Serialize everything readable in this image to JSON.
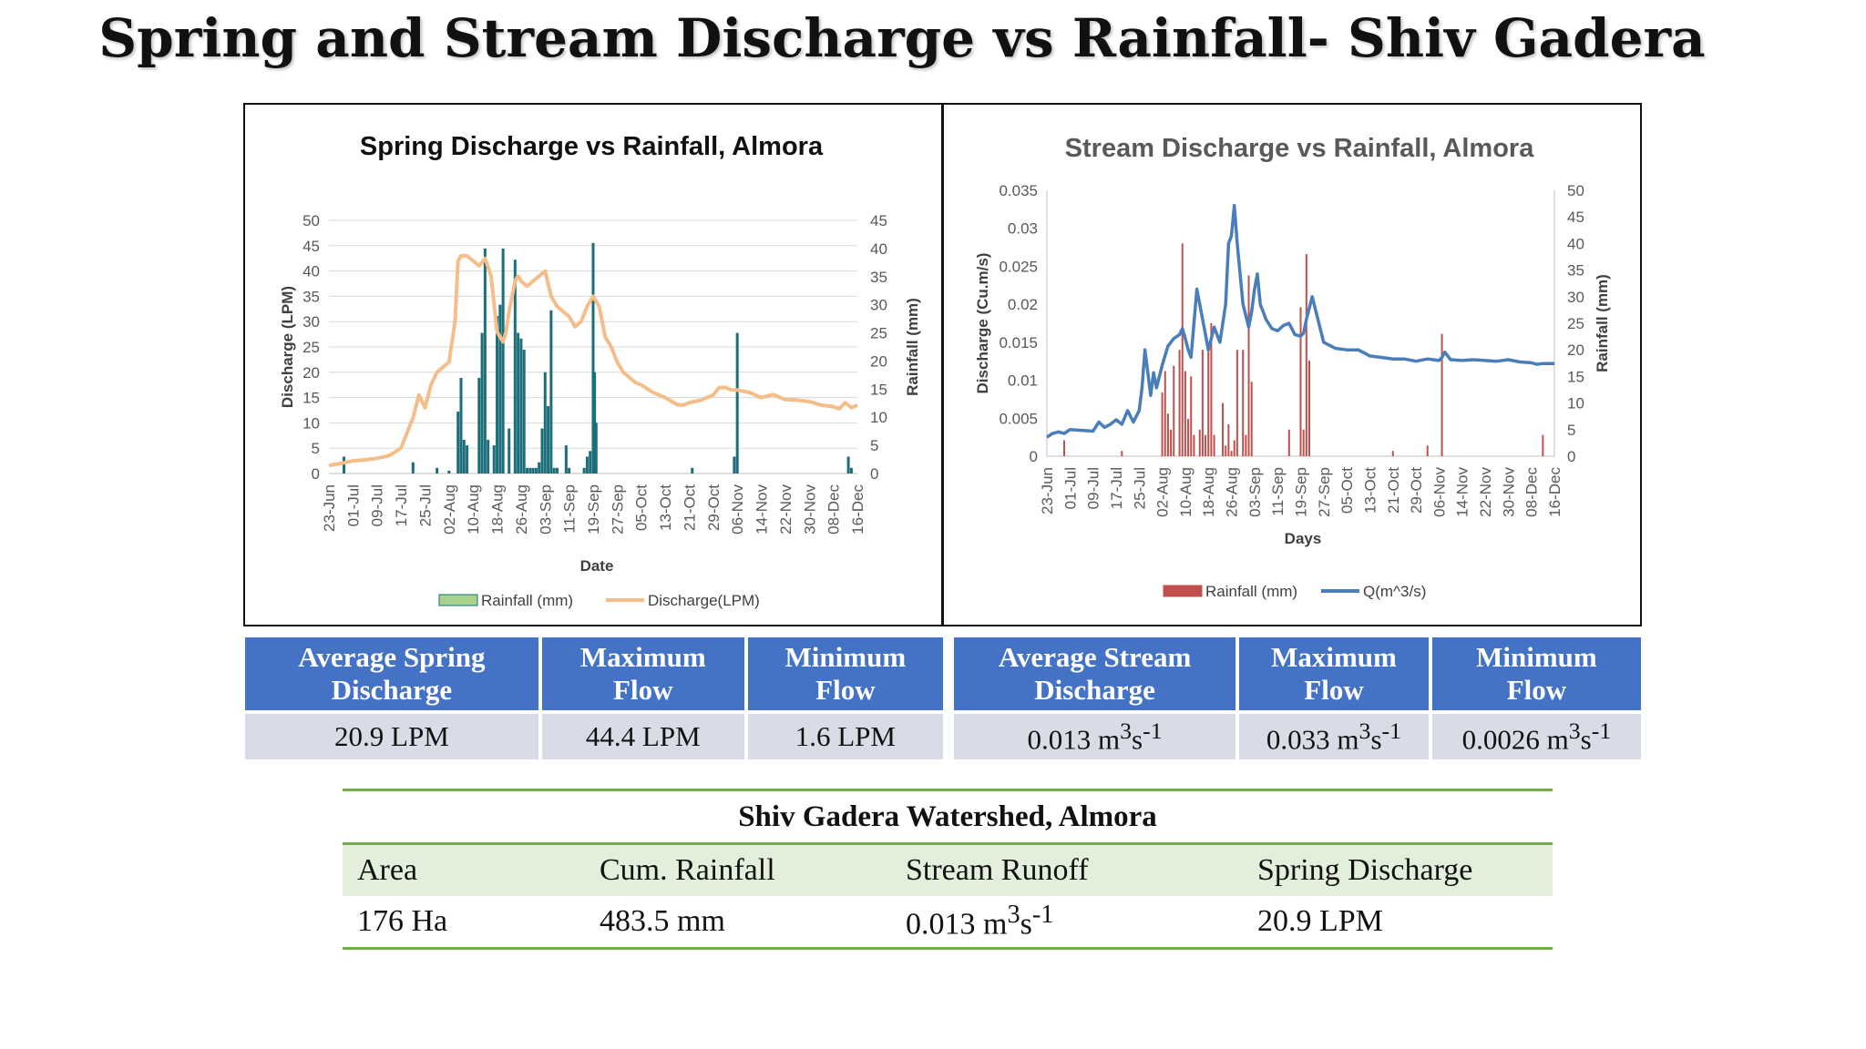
{
  "slide_title": "Spring and Stream Discharge vs Rainfall- Shiv Gadera",
  "colors": {
    "spring_rain": "#1b6e7a",
    "spring_discharge": "#f5bd8a",
    "stream_rain": "#c0504d",
    "stream_q": "#4a7ebb",
    "header_blue": "#4472c4",
    "green_rule": "#70ad47"
  },
  "chart_data": [
    {
      "type": "bar+line",
      "title": "Spring Discharge vs Rainfall,  Almora",
      "xlabel": "Date",
      "ylabel": "Discharge (LPM)",
      "y2label": "Rainfall (mm)",
      "ylim": [
        0,
        50
      ],
      "y2lim": [
        0,
        45
      ],
      "yticks": [
        "0",
        "5",
        "10",
        "15",
        "20",
        "25",
        "30",
        "35",
        "40",
        "45",
        "50"
      ],
      "y2ticks": [
        "0",
        "5",
        "10",
        "15",
        "20",
        "25",
        "30",
        "35",
        "40",
        "45"
      ],
      "xrange": [
        0,
        176
      ],
      "xticks": [
        {
          "x": 0,
          "label": "23-Jun"
        },
        {
          "x": 8,
          "label": "01-Jul"
        },
        {
          "x": 16,
          "label": "09-Jul"
        },
        {
          "x": 24,
          "label": "17-Jul"
        },
        {
          "x": 32,
          "label": "25-Jul"
        },
        {
          "x": 40,
          "label": "02-Aug"
        },
        {
          "x": 48,
          "label": "10-Aug"
        },
        {
          "x": 56,
          "label": "18-Aug"
        },
        {
          "x": 64,
          "label": "26-Aug"
        },
        {
          "x": 72,
          "label": "03-Sep"
        },
        {
          "x": 80,
          "label": "11-Sep"
        },
        {
          "x": 88,
          "label": "19-Sep"
        },
        {
          "x": 96,
          "label": "27-Sep"
        },
        {
          "x": 104,
          "label": "05-Oct"
        },
        {
          "x": 112,
          "label": "13-Oct"
        },
        {
          "x": 120,
          "label": "21-Oct"
        },
        {
          "x": 128,
          "label": "29-Oct"
        },
        {
          "x": 136,
          "label": "06-Nov"
        },
        {
          "x": 144,
          "label": "14-Nov"
        },
        {
          "x": 152,
          "label": "22-Nov"
        },
        {
          "x": 160,
          "label": "30-Nov"
        },
        {
          "x": 168,
          "label": "08-Dec"
        },
        {
          "x": 176,
          "label": "16-Dec"
        }
      ],
      "series": [
        {
          "name": "Rainfall (mm)",
          "kind": "bar",
          "axis": "right",
          "x": [
            5,
            28,
            36,
            40,
            43,
            44,
            45,
            46,
            50,
            51,
            52,
            53,
            55,
            56,
            57,
            58,
            60,
            62,
            63,
            64,
            65,
            66,
            67,
            68,
            69,
            70,
            71,
            72,
            73,
            74,
            75,
            76,
            79,
            80,
            85,
            86,
            87,
            88,
            88.5,
            89,
            121,
            135,
            136,
            173,
            174
          ],
          "values": [
            3,
            2,
            1,
            0.5,
            11,
            17,
            6,
            5,
            17,
            25,
            40,
            6,
            5,
            28,
            30,
            40,
            8,
            38,
            25,
            24,
            22,
            1,
            1,
            1,
            1,
            2,
            8,
            18,
            12,
            29,
            1,
            1,
            5,
            1,
            1,
            3,
            4,
            41,
            18,
            9,
            1,
            3,
            25,
            3,
            1
          ]
        },
        {
          "name": "Discharge(LPM)",
          "kind": "line",
          "axis": "left",
          "x": [
            0,
            4,
            8,
            12,
            16,
            20,
            24,
            26,
            28,
            30,
            32,
            34,
            36,
            38,
            40,
            42,
            43,
            44,
            46,
            48,
            50,
            52,
            54,
            56,
            58,
            59,
            60,
            62,
            63,
            64,
            66,
            68,
            70,
            72,
            74,
            76,
            78,
            80,
            82,
            84,
            86,
            88,
            90,
            92,
            94,
            96,
            98,
            100,
            102,
            104,
            108,
            112,
            116,
            118,
            120,
            124,
            128,
            130,
            132,
            134,
            136,
            140,
            144,
            148,
            152,
            156,
            160,
            164,
            168,
            170,
            172,
            174,
            176
          ],
          "values": [
            1.6,
            2,
            2.5,
            2.7,
            3,
            3.5,
            5,
            8,
            11,
            15.5,
            13,
            17.5,
            20,
            21,
            22,
            30,
            42,
            43,
            43,
            42,
            41,
            42.5,
            39,
            28,
            26,
            28,
            32,
            38,
            39,
            38,
            37,
            38,
            39,
            40,
            35,
            33,
            32,
            31,
            29,
            30,
            33,
            35,
            33,
            27,
            25,
            22,
            20,
            19,
            18,
            17.5,
            16,
            15,
            13.6,
            13.5,
            14,
            14.5,
            15.5,
            17,
            17,
            16.5,
            16.5,
            16,
            15,
            15.6,
            14.6,
            14.5,
            14.2,
            13.5,
            13.2,
            12.8,
            14,
            13,
            13.5
          ]
        }
      ],
      "legend": [
        "Rainfall (mm)",
        "Discharge(LPM)"
      ],
      "legend_position": "bottom"
    },
    {
      "type": "bar+line",
      "title": "Stream Discharge vs Rainfall, Almora",
      "xlabel": "Days",
      "ylabel": "Discharge (Cu.m/s)",
      "y2label": "Rainfall (mm)",
      "ylim": [
        0,
        0.035
      ],
      "y2lim": [
        0,
        50
      ],
      "yticks": [
        "0",
        "0.005",
        "0.01",
        "0.015",
        "0.02",
        "0.025",
        "0.03",
        "0.035"
      ],
      "y2ticks": [
        "0",
        "5",
        "10",
        "15",
        "20",
        "25",
        "30",
        "35",
        "40",
        "45",
        "50"
      ],
      "xrange": [
        0,
        176
      ],
      "xticks": [
        {
          "x": 0,
          "label": "23-Jun"
        },
        {
          "x": 8,
          "label": "01-Jul"
        },
        {
          "x": 16,
          "label": "09-Jul"
        },
        {
          "x": 24,
          "label": "17-Jul"
        },
        {
          "x": 32,
          "label": "25-Jul"
        },
        {
          "x": 40,
          "label": "02-Aug"
        },
        {
          "x": 48,
          "label": "10-Aug"
        },
        {
          "x": 56,
          "label": "18-Aug"
        },
        {
          "x": 64,
          "label": "26-Aug"
        },
        {
          "x": 72,
          "label": "03-Sep"
        },
        {
          "x": 80,
          "label": "11-Sep"
        },
        {
          "x": 88,
          "label": "19-Sep"
        },
        {
          "x": 96,
          "label": "27-Sep"
        },
        {
          "x": 104,
          "label": "05-Oct"
        },
        {
          "x": 112,
          "label": "13-Oct"
        },
        {
          "x": 120,
          "label": "21-Oct"
        },
        {
          "x": 128,
          "label": "29-Oct"
        },
        {
          "x": 136,
          "label": "06-Nov"
        },
        {
          "x": 144,
          "label": "14-Nov"
        },
        {
          "x": 152,
          "label": "22-Nov"
        },
        {
          "x": 160,
          "label": "30-Nov"
        },
        {
          "x": 168,
          "label": "08-Dec"
        },
        {
          "x": 176,
          "label": "16-Dec"
        }
      ],
      "series": [
        {
          "name": "Rainfall (mm)",
          "kind": "bar",
          "axis": "right",
          "x": [
            6,
            26,
            40,
            41,
            42,
            43,
            44,
            46,
            47,
            48,
            49,
            50,
            51,
            53,
            54,
            55,
            56,
            57,
            58,
            61,
            62,
            63,
            64,
            65,
            66,
            68,
            69,
            70,
            71,
            84,
            88,
            89,
            90,
            91,
            120,
            132,
            137,
            172
          ],
          "values": [
            3,
            1,
            12,
            16,
            8,
            5,
            17,
            20,
            40,
            16,
            7,
            15,
            4,
            5,
            20,
            4,
            20,
            25,
            4,
            10,
            2,
            6,
            1,
            3,
            20,
            20,
            4,
            34,
            14,
            5,
            28,
            5,
            38,
            18,
            1,
            2,
            23,
            4
          ]
        },
        {
          "name": "Q(m^3/s)",
          "kind": "line",
          "axis": "left",
          "x": [
            0,
            2,
            4,
            6,
            8,
            12,
            16,
            18,
            20,
            22,
            24,
            26,
            28,
            30,
            32,
            33,
            34,
            35,
            36,
            37,
            38,
            40,
            42,
            44,
            46,
            47,
            48,
            49,
            50,
            52,
            54,
            55,
            56,
            58,
            60,
            62,
            63,
            64,
            65,
            66,
            68,
            70,
            71,
            72,
            73,
            74,
            76,
            78,
            80,
            82,
            84,
            86,
            88,
            89,
            90,
            92,
            96,
            100,
            104,
            108,
            112,
            116,
            120,
            124,
            128,
            132,
            136,
            137,
            138,
            140,
            144,
            148,
            152,
            156,
            160,
            164,
            168,
            170,
            172,
            176
          ],
          "values": [
            0.0025,
            0.003,
            0.0032,
            0.003,
            0.0035,
            0.0034,
            0.0033,
            0.0045,
            0.0038,
            0.0042,
            0.0048,
            0.0042,
            0.006,
            0.0045,
            0.006,
            0.009,
            0.014,
            0.011,
            0.008,
            0.011,
            0.009,
            0.012,
            0.0145,
            0.0155,
            0.016,
            0.0168,
            0.0155,
            0.014,
            0.013,
            0.022,
            0.018,
            0.016,
            0.014,
            0.017,
            0.015,
            0.02,
            0.028,
            0.029,
            0.033,
            0.028,
            0.02,
            0.017,
            0.019,
            0.022,
            0.024,
            0.02,
            0.018,
            0.0168,
            0.0165,
            0.0172,
            0.0175,
            0.016,
            0.0158,
            0.0162,
            0.018,
            0.021,
            0.015,
            0.0142,
            0.014,
            0.014,
            0.0132,
            0.013,
            0.0128,
            0.0128,
            0.0125,
            0.0128,
            0.0126,
            0.013,
            0.0137,
            0.0127,
            0.0126,
            0.0127,
            0.0126,
            0.0125,
            0.0127,
            0.0124,
            0.0123,
            0.0121,
            0.0122,
            0.0122
          ]
        }
      ],
      "legend": [
        "Rainfall (mm)",
        "Q(m^3/s)"
      ],
      "legend_position": "bottom"
    }
  ],
  "stats_spring": {
    "headers": [
      [
        "Average Spring",
        "Discharge"
      ],
      [
        "Maximum",
        "Flow"
      ],
      [
        "Minimum",
        "Flow"
      ]
    ],
    "values": [
      "20.9 LPM",
      "44.4 LPM",
      "1.6 LPM"
    ]
  },
  "stats_stream": {
    "headers": [
      [
        "Average Stream",
        "Discharge"
      ],
      [
        "Maximum",
        "Flow"
      ],
      [
        "Minimum",
        "Flow"
      ]
    ],
    "values": [
      {
        "num": "0.013",
        "m": "m",
        "s1": "3",
        "s": "s",
        "s2": "-1"
      },
      {
        "num": "0.033",
        "m": "m",
        "s1": "3",
        "s": "s",
        "s2": "-1"
      },
      {
        "num": "0.0026",
        "m": "m",
        "s1": "3",
        "s": "s",
        "s2": "-1"
      }
    ]
  },
  "watershed": {
    "title": "Shiv Gadera Watershed, Almora",
    "headers": [
      "Area",
      "Cum. Rainfall",
      "Stream Runoff",
      "Spring Discharge"
    ],
    "values": [
      "176 Ha",
      "483.5 mm",
      {
        "num": "0.013",
        "m": "m",
        "s1": "3",
        "s": "s",
        "s2": "-1"
      },
      "20.9 LPM"
    ]
  }
}
